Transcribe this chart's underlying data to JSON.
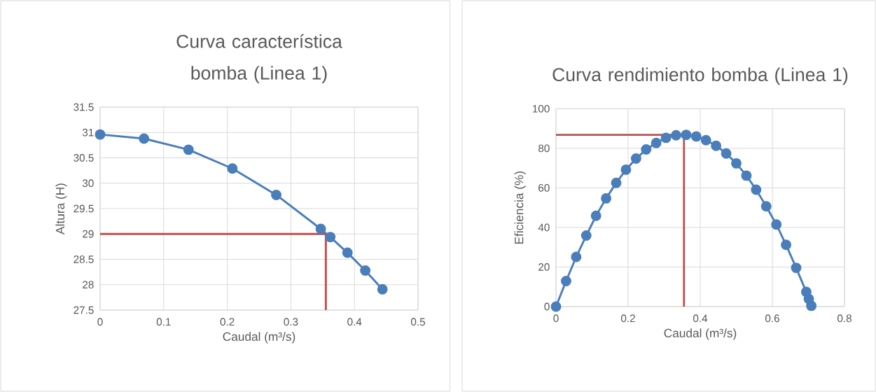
{
  "chart_data": [
    {
      "type": "line",
      "title": "Curva característica bomba (Linea 1)",
      "xlabel": "Caudal (m³/s)",
      "ylabel": "Altura (H)",
      "xlim": [
        0,
        0.5
      ],
      "xticks": [
        0,
        0.1,
        0.2,
        0.3,
        0.4,
        0.5
      ],
      "ylim": [
        27.5,
        31.5
      ],
      "yticks": [
        27.5,
        28,
        28.5,
        29,
        29.5,
        30,
        30.5,
        31,
        31.5
      ],
      "grid": true,
      "series": [
        {
          "color": "#4a7ebb",
          "marker": "circle",
          "line_style": "solid",
          "x": [
            0,
            0.069,
            0.139,
            0.208,
            0.277,
            0.347,
            0.362,
            0.389,
            0.417,
            0.444
          ],
          "values": [
            30.96,
            30.88,
            30.66,
            30.29,
            29.77,
            29.1,
            28.94,
            28.63,
            28.28,
            27.91
          ]
        },
        {
          "color": "#c0504d",
          "marker": "none",
          "line_style": "solid",
          "x": [
            0,
            0.355,
            0.355
          ],
          "values": [
            29.0,
            29.0,
            27.5
          ]
        }
      ]
    },
    {
      "type": "line",
      "title": "Curva rendimiento bomba (Linea 1)",
      "xlabel": "Caudal (m³/s)",
      "ylabel": "Eficiencia (%)",
      "xlim": [
        0,
        0.8
      ],
      "xticks": [
        0,
        0.2,
        0.4,
        0.6,
        0.8
      ],
      "ylim": [
        0,
        100
      ],
      "yticks": [
        0,
        20,
        40,
        60,
        80,
        100
      ],
      "grid": true,
      "series": [
        {
          "color": "#4a7ebb",
          "marker": "circle",
          "line_style": "solid",
          "x": [
            0,
            0.028,
            0.056,
            0.084,
            0.111,
            0.139,
            0.167,
            0.194,
            0.222,
            0.25,
            0.278,
            0.305,
            0.333,
            0.361,
            0.389,
            0.416,
            0.444,
            0.472,
            0.5,
            0.528,
            0.555,
            0.583,
            0.611,
            0.638,
            0.666,
            0.694,
            0.701,
            0.708
          ],
          "values": [
            0,
            12.9,
            25.1,
            35.9,
            45.9,
            54.7,
            62.5,
            69.2,
            74.8,
            79.4,
            82.7,
            85.3,
            86.6,
            86.8,
            86.0,
            84.1,
            81.3,
            77.4,
            72.4,
            66.2,
            59.1,
            50.7,
            41.5,
            31.2,
            19.6,
            7.4,
            3.9,
            0.4
          ]
        },
        {
          "color": "#c0504d",
          "marker": "none",
          "line_style": "solid",
          "x": [
            0,
            0.355,
            0.355
          ],
          "values": [
            86.8,
            86.8,
            0
          ]
        }
      ]
    }
  ]
}
